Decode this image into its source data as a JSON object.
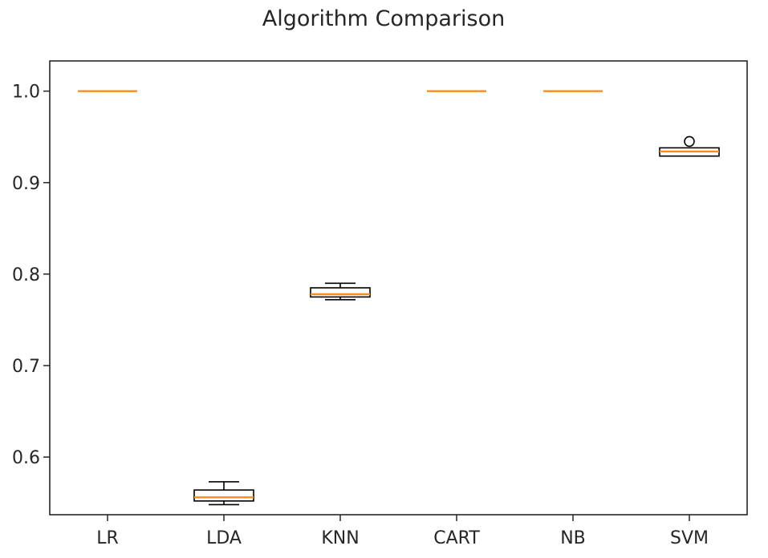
{
  "chart_data": {
    "type": "box",
    "title": "Algorithm Comparison",
    "xlabel": "",
    "ylabel": "",
    "ylim": [
      0.537,
      1.033
    ],
    "yticks": [
      "0.6",
      "0.7",
      "0.8",
      "0.9",
      "1.0"
    ],
    "categories": [
      "LR",
      "LDA",
      "KNN",
      "CART",
      "NB",
      "SVM"
    ],
    "boxes": [
      {
        "whisker_low": 1.0,
        "q1": 1.0,
        "median": 1.0,
        "q3": 1.0,
        "whisker_high": 1.0,
        "outliers": []
      },
      {
        "whisker_low": 0.548,
        "q1": 0.552,
        "median": 0.556,
        "q3": 0.564,
        "whisker_high": 0.573,
        "outliers": []
      },
      {
        "whisker_low": 0.772,
        "q1": 0.775,
        "median": 0.778,
        "q3": 0.785,
        "whisker_high": 0.79,
        "outliers": []
      },
      {
        "whisker_low": 1.0,
        "q1": 1.0,
        "median": 1.0,
        "q3": 1.0,
        "whisker_high": 1.0,
        "outliers": []
      },
      {
        "whisker_low": 1.0,
        "q1": 1.0,
        "median": 1.0,
        "q3": 1.0,
        "whisker_high": 1.0,
        "outliers": []
      },
      {
        "whisker_low": 0.929,
        "q1": 0.929,
        "median": 0.934,
        "q3": 0.938,
        "whisker_high": 0.938,
        "outliers": [
          0.945
        ]
      }
    ],
    "colors": {
      "median": "#ff8c1a",
      "box": "#000000",
      "axes": "#262626"
    },
    "grid": false,
    "legend": "none"
  }
}
